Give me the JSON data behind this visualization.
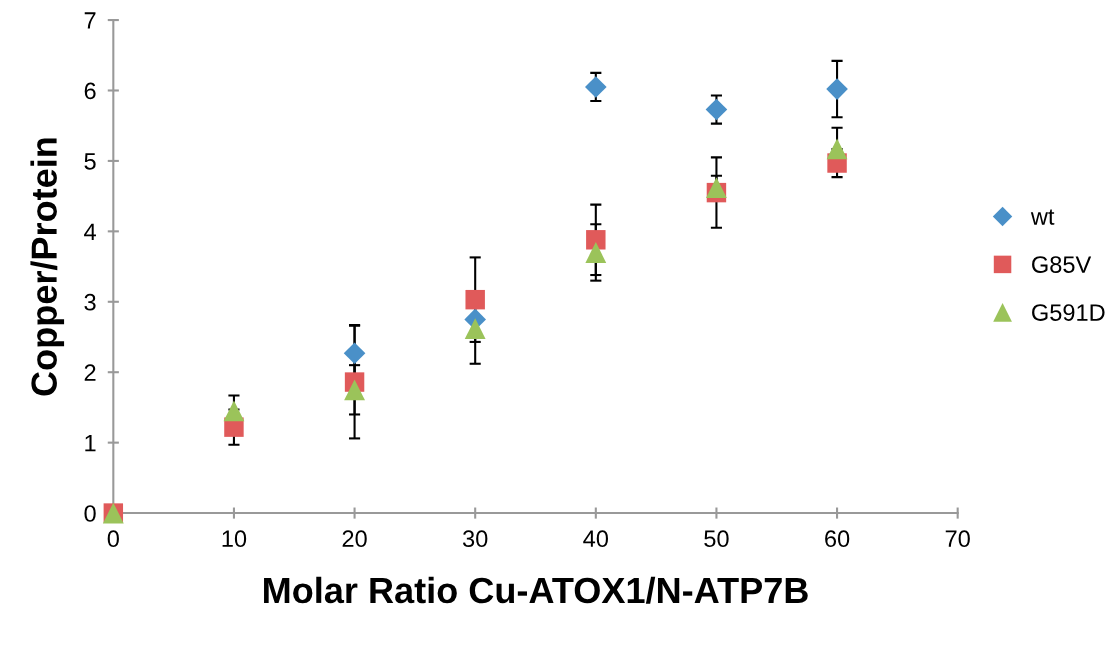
{
  "chart_data": {
    "type": "scatter",
    "xlabel": "Molar Ratio Cu-ATOX1/N-ATP7B",
    "ylabel": "Copper/Protein",
    "x": [
      0,
      10,
      20,
      30,
      40,
      50,
      60
    ],
    "series": [
      {
        "name": "wt",
        "color": "#4a90c8",
        "marker": "diamond",
        "values": [
          null,
          null,
          2.27,
          2.75,
          6.05,
          5.73,
          6.02
        ],
        "errors": [
          null,
          null,
          0.4,
          null,
          0.2,
          0.2,
          0.4
        ]
      },
      {
        "name": "G85V",
        "color": "#e05a5a",
        "marker": "square",
        "values": [
          0,
          1.22,
          1.86,
          3.03,
          3.88,
          4.55,
          4.97
        ],
        "errors": [
          null,
          0.25,
          0.8,
          0.6,
          0.5,
          0.5,
          0.2
        ]
      },
      {
        "name": "G591D",
        "color": "#9bc35a",
        "marker": "triangle",
        "values": [
          0,
          1.45,
          1.75,
          2.62,
          3.7,
          4.62,
          5.17
        ],
        "errors": [
          null,
          0.22,
          0.35,
          0.5,
          0.4,
          0.17,
          0.3
        ]
      }
    ],
    "xlim": [
      0,
      70
    ],
    "xticks": [
      0,
      10,
      20,
      30,
      40,
      50,
      60,
      70
    ],
    "ylim": [
      0,
      7
    ],
    "yticks": [
      0,
      1,
      2,
      3,
      4,
      5,
      6,
      7
    ],
    "grid": false,
    "legend": "right"
  }
}
